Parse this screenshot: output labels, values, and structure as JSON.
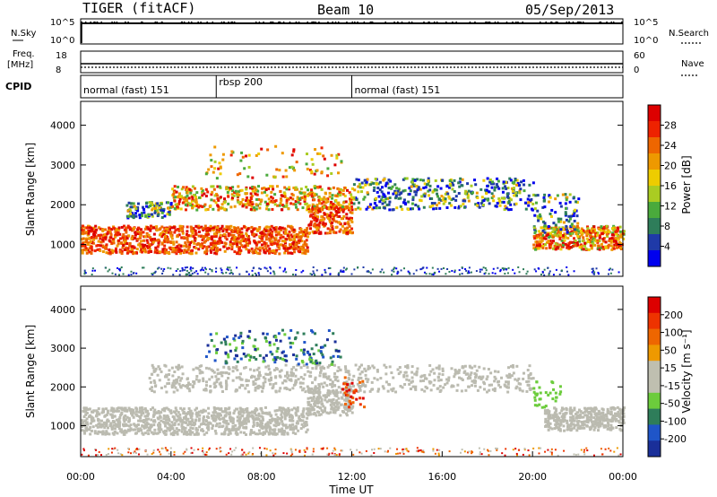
{
  "header": {
    "title": "TIGER (fitACF)",
    "beam": "Beam 10",
    "date": "05/Sep/2013"
  },
  "colors": {
    "power": [
      "#0000ee",
      "#1f3aa8",
      "#2e7d5a",
      "#4aaa3c",
      "#aacc22",
      "#eecc00",
      "#ee9900",
      "#ee6600",
      "#ee2200",
      "#dd0000"
    ],
    "velocity": [
      "#1a2f99",
      "#1f55c8",
      "#2e7d5a",
      "#6ccc3c",
      "#bfbfb0",
      "#bfbfb0",
      "#ee9900",
      "#ee6600",
      "#ee3300",
      "#dd0000"
    ],
    "ground_scatter": "#bbbbb0"
  },
  "chart_data": [
    {
      "type": "line",
      "name": "nsky-panel",
      "labels": {
        "left": "N.Sky",
        "right": "N.Search"
      },
      "y_ticks_left": [
        "10^5",
        "10^0"
      ],
      "y_ticks_right": [
        "10^5",
        "10^0"
      ]
    },
    {
      "type": "line",
      "name": "freq-panel",
      "labels": {
        "left_top": "Freq.",
        "left_bottom": "[MHz]",
        "right": "Nave"
      },
      "y_ticks_left": [
        "18",
        "8"
      ],
      "y_ticks_right": [
        "60",
        "0"
      ]
    },
    {
      "type": "table",
      "name": "cpid-panel",
      "label": "CPID",
      "segments": [
        {
          "start_h": 0,
          "end_h": 6,
          "text": "normal (fast) 151"
        },
        {
          "start_h": 6,
          "end_h": 12,
          "text": "rbsp 200"
        },
        {
          "start_h": 12,
          "end_h": 24,
          "text": "normal (fast) 151"
        }
      ]
    },
    {
      "type": "heatmap",
      "name": "power-panel",
      "ylabel": "Slant Range [km]",
      "yticks": [
        "4000",
        "3000",
        "2000",
        "1000"
      ],
      "ylim": [
        200,
        4600
      ],
      "xlim": [
        0,
        24
      ],
      "colorbar": {
        "label": "Power [dB]",
        "ticks": [
          "28",
          "24",
          "20",
          "16",
          "12",
          "8",
          "4"
        ]
      }
    },
    {
      "type": "heatmap",
      "name": "velocity-panel",
      "ylabel": "Slant Range [km]",
      "yticks": [
        "4000",
        "3000",
        "2000",
        "1000"
      ],
      "ylim": [
        200,
        4600
      ],
      "xlim": [
        0,
        24
      ],
      "xlabel": "Time UT",
      "xticks": [
        "00:00",
        "04:00",
        "08:00",
        "12:00",
        "16:00",
        "20:00",
        "00:00"
      ],
      "colorbar": {
        "label": "Velocity [m s⁻¹]",
        "ticks": [
          "200",
          "100",
          "50",
          "15",
          "-15",
          "-50",
          "-100",
          "-200"
        ]
      }
    }
  ]
}
